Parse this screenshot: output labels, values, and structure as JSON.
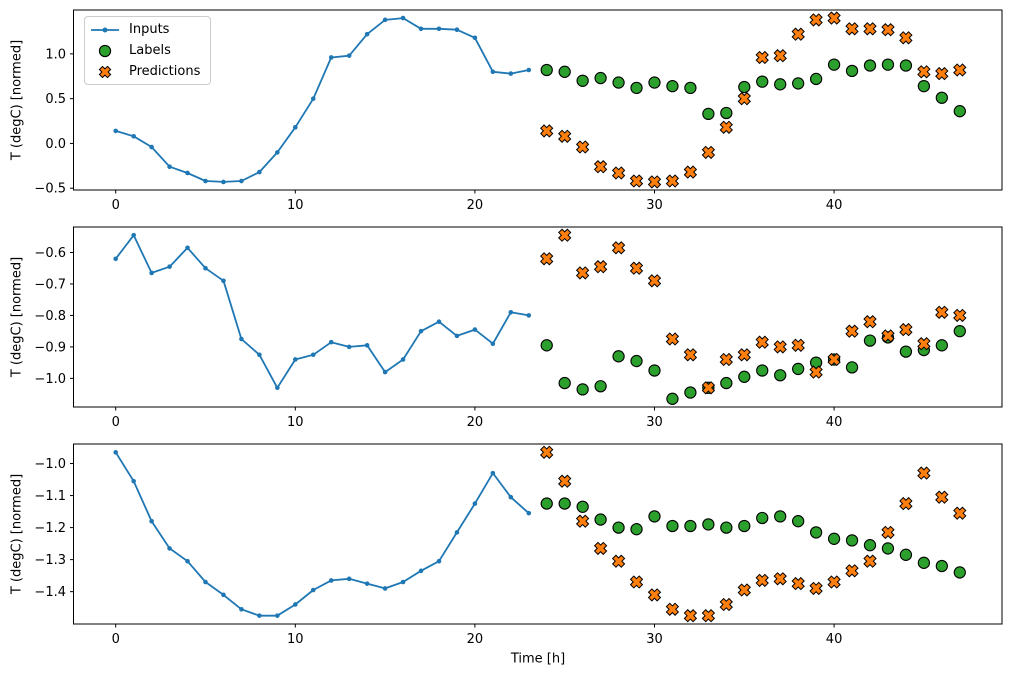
{
  "figure": {
    "xlabel": "Time [h]",
    "xlim": [
      -2.35,
      49.35
    ],
    "xticks": [
      0,
      10,
      20,
      30,
      40
    ],
    "xtick_labels": [
      "0",
      "10",
      "20",
      "30",
      "40"
    ],
    "colors": {
      "inputs": "#1f77b4",
      "labels": "#2ca02c",
      "predictions": "#ff7f0e",
      "marker_edge": "#000000",
      "axis": "#000000",
      "legend_border": "#cccccc",
      "background": "#ffffff"
    },
    "legend": {
      "position": "upper-left",
      "items": [
        {
          "label": "Inputs",
          "marker": "line-dot"
        },
        {
          "label": "Labels",
          "marker": "circle"
        },
        {
          "label": "Predictions",
          "marker": "x"
        }
      ]
    }
  },
  "chart_data": [
    {
      "type": "line",
      "panel": "top",
      "title": "",
      "xlabel": "",
      "ylabel": "T (degC) [normed]",
      "ylim": [
        -0.52,
        1.49
      ],
      "yticks": [
        1.0,
        0.5,
        0.0,
        -0.5
      ],
      "ytick_labels": [
        "1.0",
        "0.5",
        "0.0",
        "−0.5"
      ],
      "grid": false,
      "series": [
        {
          "name": "Inputs",
          "style": "line-dot",
          "x": [
            0,
            1,
            2,
            3,
            4,
            5,
            6,
            7,
            8,
            9,
            10,
            11,
            12,
            13,
            14,
            15,
            16,
            17,
            18,
            19,
            20,
            21,
            22,
            23
          ],
          "y": [
            0.14,
            0.08,
            -0.04,
            -0.26,
            -0.33,
            -0.42,
            -0.43,
            -0.42,
            -0.32,
            -0.1,
            0.18,
            0.5,
            0.96,
            0.98,
            1.22,
            1.38,
            1.4,
            1.28,
            1.28,
            1.27,
            1.18,
            0.8,
            0.78,
            0.82
          ]
        },
        {
          "name": "Labels",
          "style": "scatter-circle",
          "x": [
            24,
            25,
            26,
            27,
            28,
            29,
            30,
            31,
            32,
            33,
            34,
            35,
            36,
            37,
            38,
            39,
            40,
            41,
            42,
            43,
            44,
            45,
            46,
            47
          ],
          "y": [
            0.82,
            0.8,
            0.7,
            0.73,
            0.68,
            0.62,
            0.68,
            0.64,
            0.62,
            0.33,
            0.34,
            0.63,
            0.69,
            0.66,
            0.67,
            0.72,
            0.88,
            0.81,
            0.87,
            0.88,
            0.87,
            0.64,
            0.51,
            0.36
          ]
        },
        {
          "name": "Predictions",
          "style": "scatter-x",
          "x": [
            24,
            25,
            26,
            27,
            28,
            29,
            30,
            31,
            32,
            33,
            34,
            35,
            36,
            37,
            38,
            39,
            40,
            41,
            42,
            43,
            44,
            45,
            46,
            47
          ],
          "y": [
            0.14,
            0.08,
            -0.04,
            -0.26,
            -0.33,
            -0.42,
            -0.43,
            -0.42,
            -0.32,
            -0.1,
            0.18,
            0.5,
            0.96,
            0.98,
            1.22,
            1.38,
            1.4,
            1.28,
            1.28,
            1.27,
            1.18,
            0.8,
            0.78,
            0.82
          ]
        }
      ]
    },
    {
      "type": "line",
      "panel": "middle",
      "title": "",
      "xlabel": "",
      "ylabel": "T (degC) [normed]",
      "ylim": [
        -1.091,
        -0.519
      ],
      "yticks": [
        -0.6,
        -0.7,
        -0.8,
        -0.9,
        -1.0
      ],
      "ytick_labels": [
        "−0.6",
        "−0.7",
        "−0.8",
        "−0.9",
        "−1.0"
      ],
      "grid": false,
      "series": [
        {
          "name": "Inputs",
          "style": "line-dot",
          "x": [
            0,
            1,
            2,
            3,
            4,
            5,
            6,
            7,
            8,
            9,
            10,
            11,
            12,
            13,
            14,
            15,
            16,
            17,
            18,
            19,
            20,
            21,
            22,
            23
          ],
          "y": [
            -0.62,
            -0.545,
            -0.665,
            -0.645,
            -0.585,
            -0.65,
            -0.69,
            -0.875,
            -0.925,
            -1.03,
            -0.94,
            -0.925,
            -0.885,
            -0.9,
            -0.895,
            -0.98,
            -0.94,
            -0.85,
            -0.82,
            -0.865,
            -0.845,
            -0.89,
            -0.79,
            -0.8
          ]
        },
        {
          "name": "Labels",
          "style": "scatter-circle",
          "x": [
            24,
            25,
            26,
            27,
            28,
            29,
            30,
            31,
            32,
            33,
            34,
            35,
            36,
            37,
            38,
            39,
            40,
            41,
            42,
            43,
            44,
            45,
            46,
            47
          ],
          "y": [
            -0.895,
            -1.015,
            -1.035,
            -1.025,
            -0.93,
            -0.945,
            -0.975,
            -1.065,
            -1.045,
            -1.03,
            -1.015,
            -0.995,
            -0.975,
            -0.99,
            -0.97,
            -0.95,
            -0.94,
            -0.965,
            -0.88,
            -0.87,
            -0.915,
            -0.91,
            -0.895,
            -0.85
          ]
        },
        {
          "name": "Predictions",
          "style": "scatter-x",
          "x": [
            24,
            25,
            26,
            27,
            28,
            29,
            30,
            31,
            32,
            33,
            34,
            35,
            36,
            37,
            38,
            39,
            40,
            41,
            42,
            43,
            44,
            45,
            46,
            47
          ],
          "y": [
            -0.62,
            -0.545,
            -0.665,
            -0.645,
            -0.585,
            -0.65,
            -0.69,
            -0.875,
            -0.925,
            -1.03,
            -0.94,
            -0.925,
            -0.885,
            -0.9,
            -0.895,
            -0.98,
            -0.94,
            -0.85,
            -0.82,
            -0.865,
            -0.845,
            -0.89,
            -0.79,
            -0.8
          ]
        }
      ]
    },
    {
      "type": "line",
      "panel": "bottom",
      "title": "",
      "xlabel": "Time [h]",
      "ylabel": "T (degC) [normed]",
      "ylim": [
        -1.501,
        -0.939
      ],
      "yticks": [
        -1.0,
        -1.1,
        -1.2,
        -1.3,
        -1.4
      ],
      "ytick_labels": [
        "−1.0",
        "−1.1",
        "−1.2",
        "−1.3",
        "−1.4"
      ],
      "grid": false,
      "series": [
        {
          "name": "Inputs",
          "style": "line-dot",
          "x": [
            0,
            1,
            2,
            3,
            4,
            5,
            6,
            7,
            8,
            9,
            10,
            11,
            12,
            13,
            14,
            15,
            16,
            17,
            18,
            19,
            20,
            21,
            22,
            23
          ],
          "y": [
            -0.965,
            -1.055,
            -1.18,
            -1.265,
            -1.305,
            -1.37,
            -1.41,
            -1.455,
            -1.475,
            -1.475,
            -1.44,
            -1.395,
            -1.365,
            -1.36,
            -1.375,
            -1.39,
            -1.37,
            -1.335,
            -1.305,
            -1.215,
            -1.125,
            -1.03,
            -1.105,
            -1.155
          ]
        },
        {
          "name": "Labels",
          "style": "scatter-circle",
          "x": [
            24,
            25,
            26,
            27,
            28,
            29,
            30,
            31,
            32,
            33,
            34,
            35,
            36,
            37,
            38,
            39,
            40,
            41,
            42,
            43,
            44,
            45,
            46,
            47
          ],
          "y": [
            -1.125,
            -1.125,
            -1.135,
            -1.175,
            -1.2,
            -1.205,
            -1.165,
            -1.195,
            -1.195,
            -1.19,
            -1.2,
            -1.195,
            -1.17,
            -1.165,
            -1.18,
            -1.215,
            -1.235,
            -1.24,
            -1.255,
            -1.265,
            -1.285,
            -1.31,
            -1.32,
            -1.34
          ]
        },
        {
          "name": "Predictions",
          "style": "scatter-x",
          "x": [
            24,
            25,
            26,
            27,
            28,
            29,
            30,
            31,
            32,
            33,
            34,
            35,
            36,
            37,
            38,
            39,
            40,
            41,
            42,
            43,
            44,
            45,
            46,
            47
          ],
          "y": [
            -0.965,
            -1.055,
            -1.18,
            -1.265,
            -1.305,
            -1.37,
            -1.41,
            -1.455,
            -1.475,
            -1.475,
            -1.44,
            -1.395,
            -1.365,
            -1.36,
            -1.375,
            -1.39,
            -1.37,
            -1.335,
            -1.305,
            -1.215,
            -1.125,
            -1.03,
            -1.105,
            -1.155
          ]
        }
      ]
    }
  ]
}
